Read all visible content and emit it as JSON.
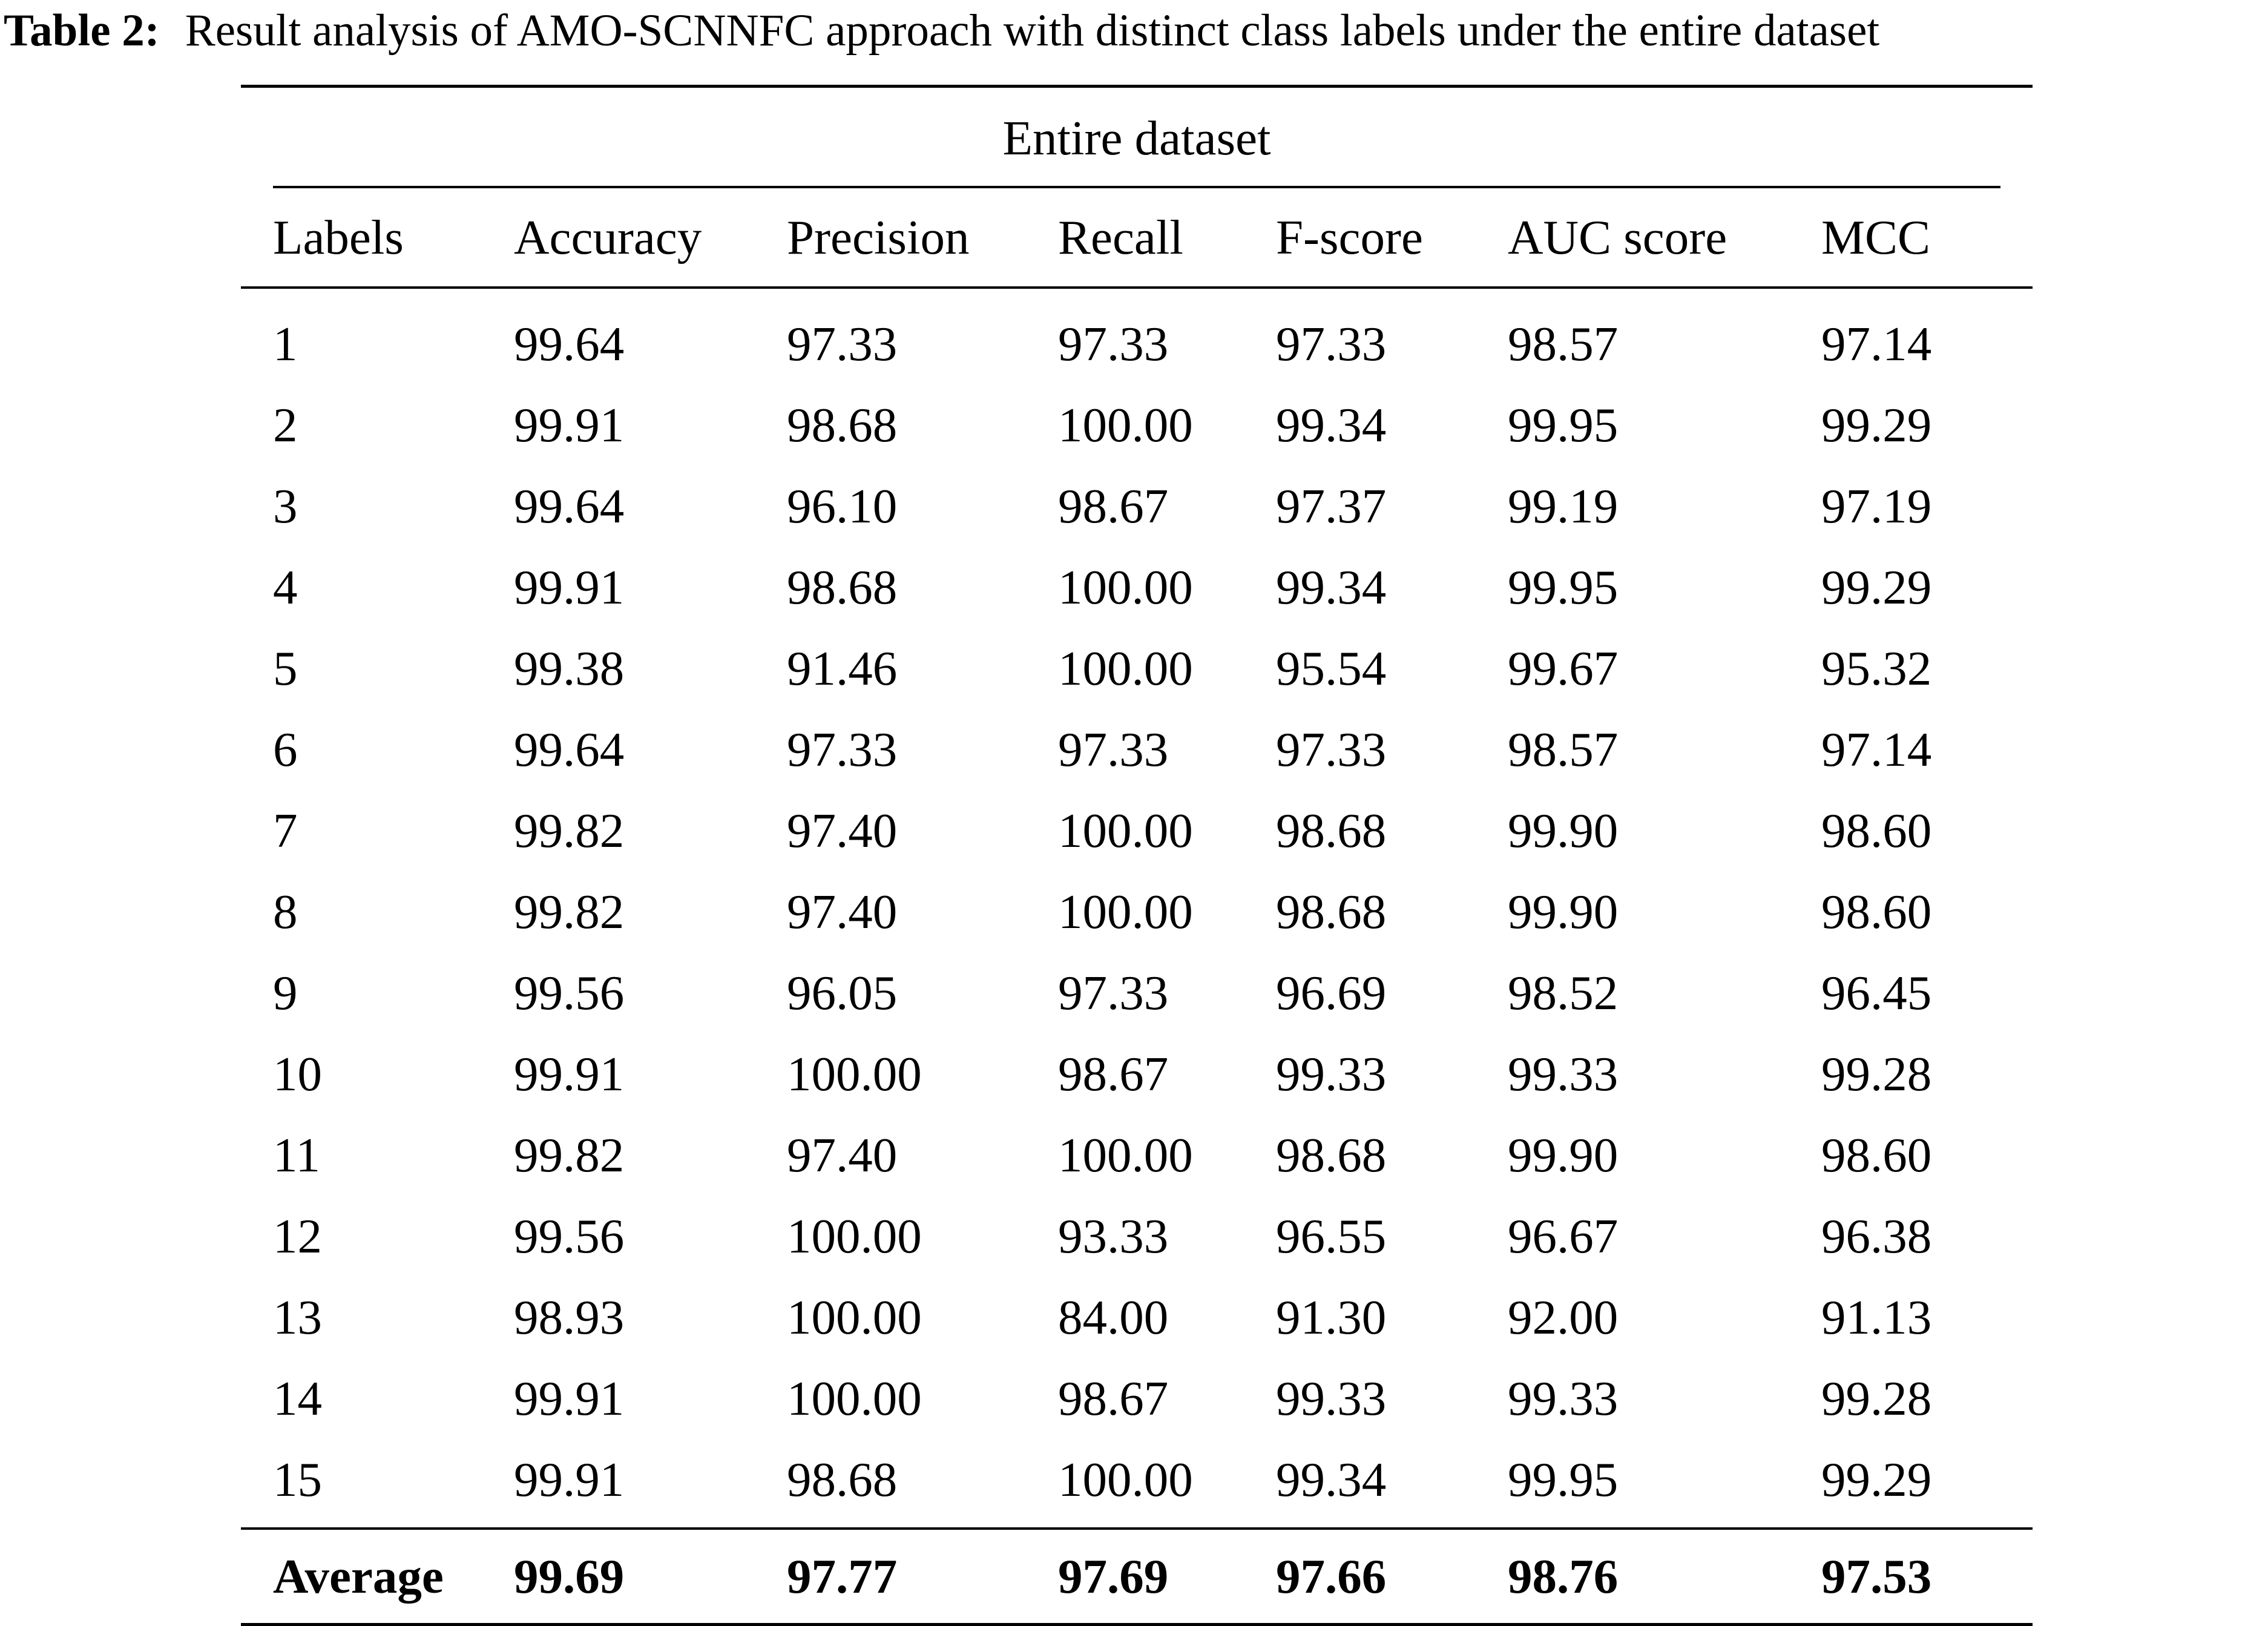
{
  "caption": {
    "label": "Table 2:",
    "text": "Result analysis of AMO-SCNNFC approach with distinct class labels under the entire dataset"
  },
  "table": {
    "group_header": "Entire dataset",
    "columns": [
      "Labels",
      "Accuracy",
      "Precision",
      "Recall",
      "F-score",
      "AUC score",
      "MCC"
    ],
    "rows": [
      [
        "1",
        "99.64",
        "97.33",
        "97.33",
        "97.33",
        "98.57",
        "97.14"
      ],
      [
        "2",
        "99.91",
        "98.68",
        "100.00",
        "99.34",
        "99.95",
        "99.29"
      ],
      [
        "3",
        "99.64",
        "96.10",
        "98.67",
        "97.37",
        "99.19",
        "97.19"
      ],
      [
        "4",
        "99.91",
        "98.68",
        "100.00",
        "99.34",
        "99.95",
        "99.29"
      ],
      [
        "5",
        "99.38",
        "91.46",
        "100.00",
        "95.54",
        "99.67",
        "95.32"
      ],
      [
        "6",
        "99.64",
        "97.33",
        "97.33",
        "97.33",
        "98.57",
        "97.14"
      ],
      [
        "7",
        "99.82",
        "97.40",
        "100.00",
        "98.68",
        "99.90",
        "98.60"
      ],
      [
        "8",
        "99.82",
        "97.40",
        "100.00",
        "98.68",
        "99.90",
        "98.60"
      ],
      [
        "9",
        "99.56",
        "96.05",
        "97.33",
        "96.69",
        "98.52",
        "96.45"
      ],
      [
        "10",
        "99.91",
        "100.00",
        "98.67",
        "99.33",
        "99.33",
        "99.28"
      ],
      [
        "11",
        "99.82",
        "97.40",
        "100.00",
        "98.68",
        "99.90",
        "98.60"
      ],
      [
        "12",
        "99.56",
        "100.00",
        "93.33",
        "96.55",
        "96.67",
        "96.38"
      ],
      [
        "13",
        "98.93",
        "100.00",
        "84.00",
        "91.30",
        "92.00",
        "91.13"
      ],
      [
        "14",
        "99.91",
        "100.00",
        "98.67",
        "99.33",
        "99.33",
        "99.28"
      ],
      [
        "15",
        "99.91",
        "98.68",
        "100.00",
        "99.34",
        "99.95",
        "99.29"
      ]
    ],
    "average": [
      "Average",
      "99.69",
      "97.77",
      "97.69",
      "97.66",
      "98.76",
      "97.53"
    ]
  }
}
